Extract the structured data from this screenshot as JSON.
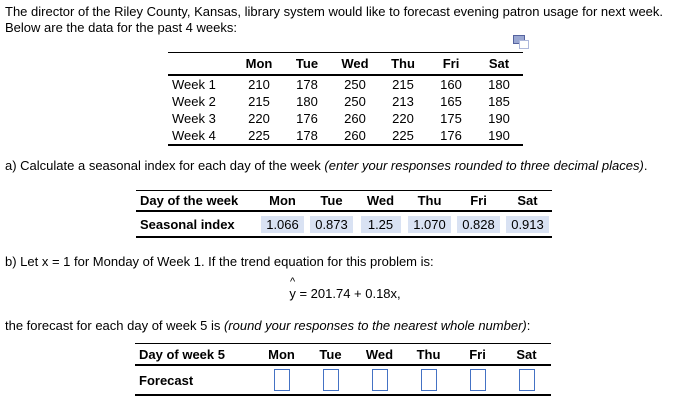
{
  "intro": {
    "line1": "The director of the Riley County, Kansas, library system would like to forecast evening patron usage for next week.",
    "line2": "Below are the data for the past 4 weeks:"
  },
  "icons": {
    "table_popout": "copy-icon"
  },
  "usage_table": {
    "col_headers": [
      "Mon",
      "Tue",
      "Wed",
      "Thu",
      "Fri",
      "Sat"
    ],
    "rows": [
      {
        "label": "Week 1",
        "values": [
          210,
          178,
          250,
          215,
          160,
          180
        ]
      },
      {
        "label": "Week 2",
        "values": [
          215,
          180,
          250,
          213,
          165,
          185
        ]
      },
      {
        "label": "Week 3",
        "values": [
          220,
          176,
          260,
          220,
          175,
          190
        ]
      },
      {
        "label": "Week 4",
        "values": [
          225,
          178,
          260,
          225,
          176,
          190
        ]
      }
    ]
  },
  "part_a": {
    "text": "a) Calculate a seasonal index for each day of the week ",
    "italic": "(enter your responses rounded to three decimal places)",
    "suffix": "."
  },
  "seasonal_table": {
    "label_header": "Day of the week",
    "col_headers": [
      "Mon",
      "Tue",
      "Wed",
      "Thu",
      "Fri",
      "Sat"
    ],
    "row_label": "Seasonal index",
    "values": [
      "1.066",
      "0.873",
      "1.25",
      "1.070",
      "0.828",
      "0.913"
    ]
  },
  "part_b": {
    "text": "b) Let x = 1 for Monday of Week 1. If the trend equation for this problem is:"
  },
  "equation": {
    "variable": "y",
    "hat": "^",
    "rest": " = 201.74 + 0.18x,"
  },
  "forecast_intro": {
    "text": "the forecast for each day of week 5 is ",
    "italic": "(round your responses to the nearest whole number)",
    "suffix": ":"
  },
  "forecast_table": {
    "label_header": "Day of week 5",
    "col_headers": [
      "Mon",
      "Tue",
      "Wed",
      "Thu",
      "Fri",
      "Sat"
    ],
    "row_label": "Forecast",
    "values": [
      "",
      "",
      "",
      "",
      "",
      ""
    ]
  },
  "colors": {
    "answer_fill": "#d9e2f3",
    "input_border": "#4472c4",
    "text": "#000000"
  }
}
